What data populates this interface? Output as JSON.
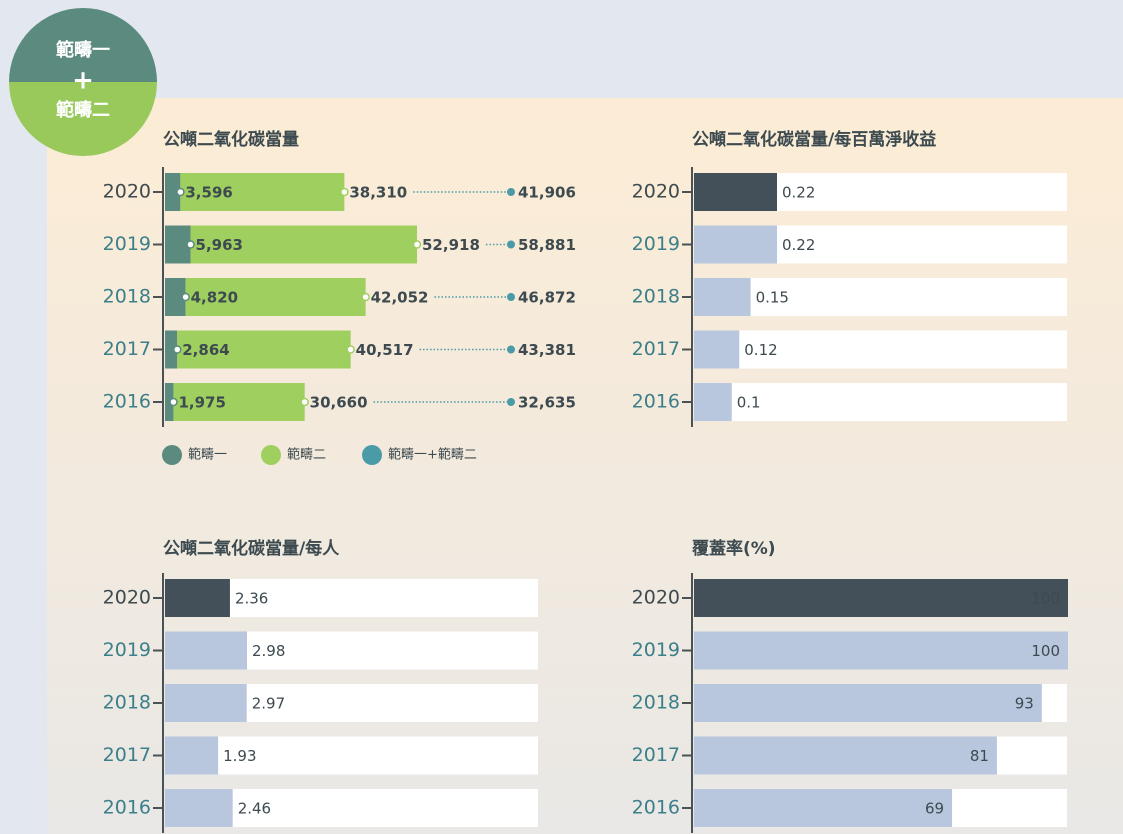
{
  "badge": [
    "範疇一",
    "+",
    "範疇二"
  ],
  "chart_data": [
    {
      "type": "stacked_bar",
      "title": "公噸二氧化碳當量",
      "categories": [
        "2020",
        "2019",
        "2018",
        "2017",
        "2016"
      ],
      "series": [
        {
          "name": "範疇一",
          "color": "#5b8a7f",
          "label_color": "#4f7f74",
          "values": [
            3596,
            5963,
            4820,
            2864,
            1975
          ],
          "value_labels": [
            "3,596",
            "5,963",
            "4,820",
            "2,864",
            "1,975"
          ]
        },
        {
          "name": "範疇二",
          "color": "#9fcf5f",
          "label_color": "#92c451",
          "values": [
            38310,
            52918,
            42052,
            40517,
            30660
          ],
          "value_labels": [
            "38,310",
            "52,918",
            "42,052",
            "40,517",
            "30,660"
          ]
        }
      ],
      "totals": {
        "name": "範疇一+範疇二",
        "color": "#4a9aa8",
        "values": [
          41906,
          58881,
          46872,
          43381,
          32635
        ],
        "value_labels": [
          "41,906",
          "58,881",
          "46,872",
          "43,381",
          "32,635"
        ]
      }
    },
    {
      "type": "bar",
      "title": "公噸二氧化碳當量/每百萬淨收益",
      "categories": [
        "2020",
        "2019",
        "2018",
        "2017",
        "2016"
      ],
      "values": [
        0.22,
        0.22,
        0.15,
        0.12,
        0.1
      ],
      "colors": [
        "#434f59",
        "#b8c7dd",
        "#b8c7dd",
        "#b8c7dd",
        "#b8c7dd"
      ],
      "labels_inside": false
    },
    {
      "type": "bar",
      "title": "公噸二氧化碳當量/每人",
      "categories": [
        "2020",
        "2019",
        "2018",
        "2017",
        "2016"
      ],
      "values": [
        2.36,
        2.98,
        2.97,
        1.93,
        2.46
      ],
      "colors": [
        "#434f59",
        "#b8c7dd",
        "#b8c7dd",
        "#b8c7dd",
        "#b8c7dd"
      ],
      "labels_inside": false
    },
    {
      "type": "bar",
      "title": "覆蓋率(%)",
      "categories": [
        "2020",
        "2019",
        "2018",
        "2017",
        "2016"
      ],
      "values": [
        100,
        100,
        93,
        81,
        69
      ],
      "colors": [
        "#434f59",
        "#b8c7dd",
        "#b8c7dd",
        "#b8c7dd",
        "#b8c7dd"
      ],
      "labels_inside": true
    }
  ]
}
